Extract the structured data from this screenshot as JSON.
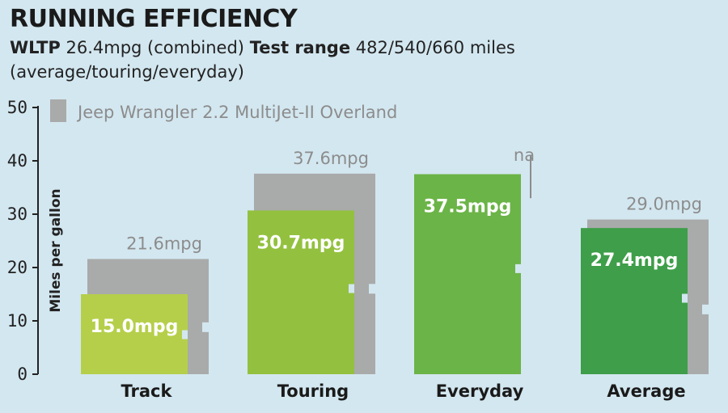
{
  "header": {
    "title": "RUNNING EFFICIENCY",
    "wltp_key": "WLTP",
    "wltp_value": "26.4mpg (combined)",
    "range_key": "Test range",
    "range_value": "482/540/660 miles",
    "range_note": "(average/touring/everyday)"
  },
  "colors": {
    "background": "#d3e7f0",
    "grey_bar": "#a9aaaa",
    "green_track": "#b5cf4a",
    "green_touring": "#93c13f",
    "green_everyday": "#6bb447",
    "green_average": "#3e9e49"
  },
  "chart_data": {
    "type": "bar",
    "title": "RUNNING EFFICIENCY",
    "ylabel": "Miles per gallon",
    "xlabel": "",
    "ylim": [
      0,
      50
    ],
    "yticks": [
      0,
      10,
      20,
      30,
      40,
      50
    ],
    "grid": false,
    "legend_position": "top-left",
    "categories": [
      "Track",
      "Touring",
      "Everyday",
      "Average"
    ],
    "series": [
      {
        "name": "Jeep Wrangler 2.2 MultiJet-II Overland",
        "values": [
          21.6,
          37.6,
          null,
          29.0
        ],
        "labels": [
          "21.6mpg",
          "37.6mpg",
          "na",
          "29.0mpg"
        ]
      },
      {
        "values": [
          15.0,
          30.7,
          37.5,
          27.4
        ],
        "labels": [
          "15.0mpg",
          "30.7mpg",
          "37.5mpg",
          "27.4mpg"
        ]
      }
    ]
  }
}
